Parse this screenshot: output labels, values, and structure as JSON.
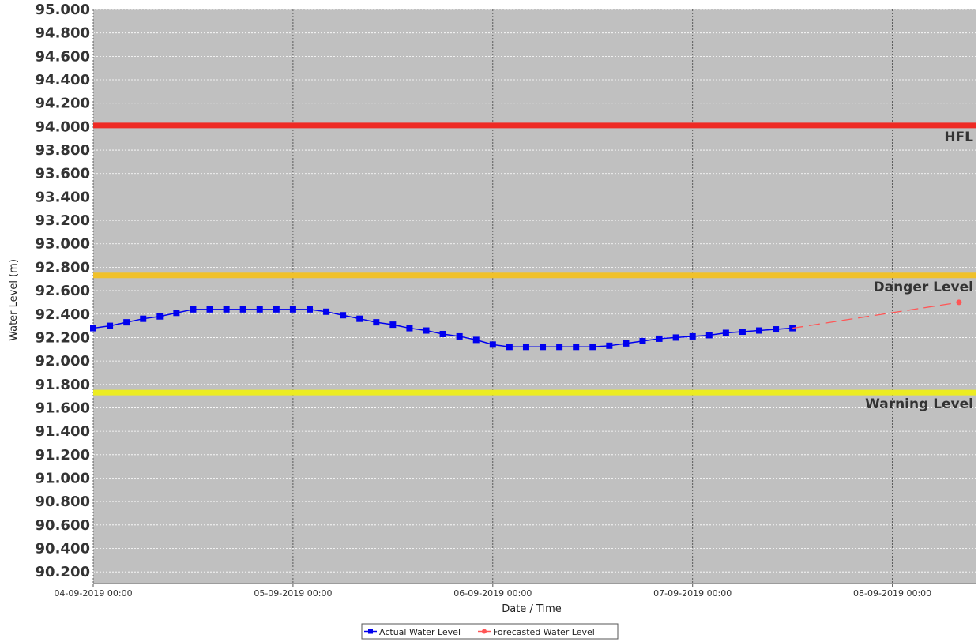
{
  "chart_data": {
    "type": "line",
    "xlabel": "Date / Time",
    "ylabel": "Water Level (m)",
    "ylim": [
      90.1,
      95.0
    ],
    "y_ticks": [
      "95.000",
      "94.800",
      "94.600",
      "94.400",
      "94.200",
      "94.000",
      "93.800",
      "93.600",
      "93.400",
      "93.200",
      "93.000",
      "92.800",
      "92.600",
      "92.400",
      "92.200",
      "92.000",
      "91.800",
      "91.600",
      "91.400",
      "91.200",
      "91.000",
      "90.800",
      "90.600",
      "90.400",
      "90.200"
    ],
    "x_range": [
      "2019-09-04 00:00",
      "2019-09-08 10:00"
    ],
    "x_ticks": [
      "04-09-2019 00:00",
      "05-09-2019 00:00",
      "06-09-2019 00:00",
      "07-09-2019 00:00",
      "08-09-2019 00:00"
    ],
    "grid": true,
    "plot_background": "#c0c0c0",
    "legend_position": "bottom",
    "reference_lines": [
      {
        "label": "HFL",
        "value": 94.01,
        "color": "#ee2a24"
      },
      {
        "label": "Danger Level",
        "value": 92.73,
        "color": "#f0c12a"
      },
      {
        "label": "Warning Level",
        "value": 91.73,
        "color": "#ecec22"
      }
    ],
    "series": [
      {
        "name": "Actual Water Level",
        "color": "#0000ee",
        "marker": "square",
        "x": [
          "2019-09-04 00:00",
          "2019-09-04 02:00",
          "2019-09-04 04:00",
          "2019-09-04 06:00",
          "2019-09-04 08:00",
          "2019-09-04 10:00",
          "2019-09-04 12:00",
          "2019-09-04 14:00",
          "2019-09-04 16:00",
          "2019-09-04 18:00",
          "2019-09-04 20:00",
          "2019-09-04 22:00",
          "2019-09-05 00:00",
          "2019-09-05 02:00",
          "2019-09-05 04:00",
          "2019-09-05 06:00",
          "2019-09-05 08:00",
          "2019-09-05 10:00",
          "2019-09-05 12:00",
          "2019-09-05 14:00",
          "2019-09-05 16:00",
          "2019-09-05 18:00",
          "2019-09-05 20:00",
          "2019-09-05 22:00",
          "2019-09-06 00:00",
          "2019-09-06 02:00",
          "2019-09-06 04:00",
          "2019-09-06 06:00",
          "2019-09-06 08:00",
          "2019-09-06 10:00",
          "2019-09-06 12:00",
          "2019-09-06 14:00",
          "2019-09-06 16:00",
          "2019-09-06 18:00",
          "2019-09-06 20:00",
          "2019-09-06 22:00",
          "2019-09-07 00:00",
          "2019-09-07 02:00",
          "2019-09-07 04:00",
          "2019-09-07 06:00",
          "2019-09-07 08:00",
          "2019-09-07 10:00",
          "2019-09-07 12:00"
        ],
        "values": [
          92.28,
          92.3,
          92.33,
          92.36,
          92.38,
          92.41,
          92.44,
          92.44,
          92.44,
          92.44,
          92.44,
          92.44,
          92.44,
          92.44,
          92.42,
          92.39,
          92.36,
          92.33,
          92.31,
          92.28,
          92.26,
          92.23,
          92.21,
          92.18,
          92.14,
          92.12,
          92.12,
          92.12,
          92.12,
          92.12,
          92.12,
          92.13,
          92.15,
          92.17,
          92.19,
          92.2,
          92.21,
          92.22,
          92.24,
          92.25,
          92.26,
          92.27,
          92.28
        ]
      },
      {
        "name": "Forecasted Water Level",
        "color": "#ff5555",
        "marker": "circle",
        "style": "dashed",
        "x": [
          "2019-09-07 12:00",
          "2019-09-08 08:00"
        ],
        "values": [
          92.28,
          92.5
        ]
      }
    ]
  }
}
